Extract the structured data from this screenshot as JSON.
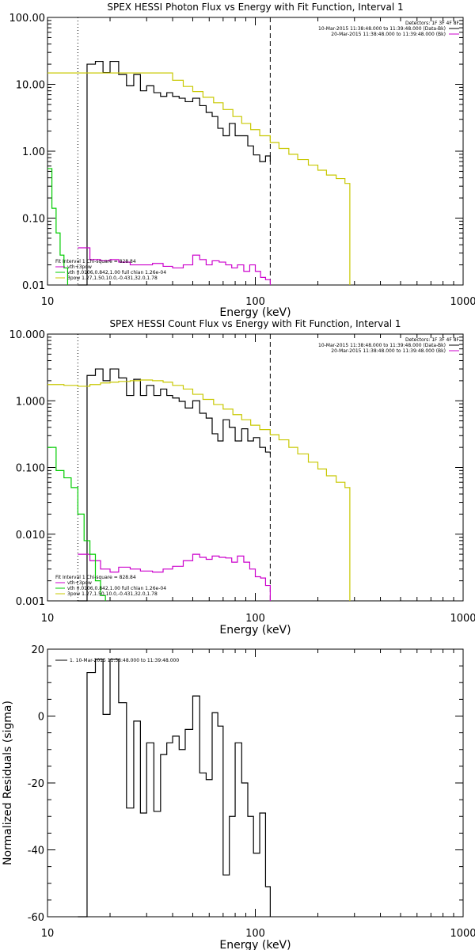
{
  "colors": {
    "data": "#000000",
    "fit": "#c8c800",
    "bk": "#cc00cc",
    "vth": "#00cc00",
    "fit_legend_vth": "#cc00cc"
  },
  "chart_data": [
    {
      "type": "line",
      "title": "SPEX HESSI Photon Flux vs Energy with Fit Function, Interval 1",
      "xlabel": "Energy (keV)",
      "ylabel": "",
      "xscale": "log",
      "yscale": "log",
      "xlim": [
        10,
        1000
      ],
      "ylim": [
        0.01,
        100
      ],
      "xtick_labels": [
        "10",
        "100",
        "1000"
      ],
      "ytick_labels": [
        "100.00",
        "10.00",
        "1.00",
        "0.10",
        "0.01"
      ],
      "detectors_text": "Detectors: 1F 3F 4F 8F",
      "legend_right": [
        {
          "text": "10-Mar-2015 11:38:48.000 to 11:39:48.000 (Data-Bk)",
          "color": "#000000"
        },
        {
          "text": "20-Mar-2015 11:38:48.000 to 11:39:48.000 (Bk)",
          "color": "#cc00cc"
        }
      ],
      "fit_header": "Fit Interval  1   Chi-square = 828.84",
      "fit_lines": [
        {
          "text": "vth+3pow",
          "color": "#cc00cc"
        },
        {
          "text": "vth 0.0106,0.842,1.00  full chian 1.26e-04",
          "color": "#00cc00"
        },
        {
          "text": "3pow 1.27,1.50,10.0,-0.431,32.0,1.78",
          "color": "#c8c800"
        }
      ],
      "vlines": [
        {
          "x": 14.0,
          "style": "dotted"
        },
        {
          "x": 118,
          "style": "dashed"
        }
      ],
      "series": [
        {
          "name": "Data-Bk",
          "color": "#000000",
          "step": true,
          "x": [
            14,
            15.5,
            17,
            18.5,
            20,
            22,
            24,
            26,
            28,
            30,
            32.5,
            35,
            37.5,
            40,
            43,
            46,
            50,
            54,
            58,
            62,
            66,
            70,
            75,
            80,
            86,
            92,
            98,
            105,
            112,
            118
          ],
          "y": [
            0.01,
            20,
            22,
            15,
            22,
            14,
            9.5,
            14,
            8,
            9.5,
            7.5,
            6.6,
            7.5,
            6.6,
            6.2,
            5.5,
            6.2,
            4.8,
            3.8,
            3.3,
            2.2,
            1.7,
            2.6,
            1.7,
            1.7,
            1.2,
            0.88,
            0.7,
            0.85,
            0.7
          ]
        },
        {
          "name": "Fit",
          "color": "#c8c800",
          "step": true,
          "x": [
            10,
            12,
            14,
            16,
            18,
            20,
            22,
            25,
            28,
            32,
            36,
            40,
            45,
            50,
            56,
            63,
            70,
            78,
            86,
            95,
            105,
            118,
            130,
            145,
            160,
            180,
            200,
            220,
            245,
            270,
            285
          ],
          "y": [
            14.8,
            14.8,
            14.8,
            14.8,
            14.8,
            14.8,
            14.8,
            14.8,
            14.8,
            14.8,
            14.8,
            11.5,
            9.3,
            7.8,
            6.4,
            5.3,
            4.2,
            3.3,
            2.6,
            2.1,
            1.7,
            1.35,
            1.1,
            0.9,
            0.75,
            0.62,
            0.52,
            0.44,
            0.39,
            0.33,
            0.01
          ]
        },
        {
          "name": "Bk",
          "color": "#cc00cc",
          "step": true,
          "x": [
            14,
            16,
            18,
            20,
            22,
            25,
            28,
            32,
            36,
            40,
            45,
            50,
            54,
            58,
            62,
            67,
            72,
            77,
            82,
            88,
            94,
            100,
            106,
            112,
            118
          ],
          "y": [
            0.036,
            0.024,
            0.023,
            0.024,
            0.022,
            0.02,
            0.02,
            0.021,
            0.019,
            0.018,
            0.02,
            0.028,
            0.024,
            0.02,
            0.023,
            0.022,
            0.02,
            0.018,
            0.02,
            0.016,
            0.02,
            0.016,
            0.013,
            0.012,
            0.01
          ]
        },
        {
          "name": "vth",
          "color": "#00cc00",
          "step": true,
          "x": [
            10,
            10.5,
            11,
            11.5,
            12,
            12.5
          ],
          "y": [
            0.55,
            0.14,
            0.06,
            0.028,
            0.018,
            0.01
          ]
        }
      ]
    },
    {
      "type": "line",
      "title": "SPEX HESSI Count Flux vs Energy with Fit Function, Interval 1",
      "xlabel": "Energy (keV)",
      "ylabel": "",
      "xscale": "log",
      "yscale": "log",
      "xlim": [
        10,
        1000
      ],
      "ylim": [
        0.001,
        10
      ],
      "xtick_labels": [
        "10",
        "100",
        "1000"
      ],
      "ytick_labels": [
        "10.000",
        "1.000",
        "0.100",
        "0.010",
        "0.001"
      ],
      "detectors_text": "Detectors: 1F 3F 4F 8F",
      "legend_right": [
        {
          "text": "10-Mar-2015 11:38:48.000 to 11:39:48.000 (Data-Bk)",
          "color": "#000000"
        },
        {
          "text": "20-Mar-2015 11:38:48.000 to 11:39:48.000 (Bk)",
          "color": "#cc00cc"
        }
      ],
      "fit_header": "Fit Interval  1   Chi-square = 828.84",
      "fit_lines": [
        {
          "text": "vth+3pow",
          "color": "#cc00cc"
        },
        {
          "text": "vth 0.0106,0.842,1.00  full chian 1.26e-04",
          "color": "#00cc00"
        },
        {
          "text": "3pow 1.27,1.50,10.0,-0.431,32.0,1.78",
          "color": "#c8c800"
        }
      ],
      "vlines": [
        {
          "x": 14.0,
          "style": "dotted"
        },
        {
          "x": 118,
          "style": "dashed"
        }
      ],
      "series": [
        {
          "name": "Data-Bk",
          "color": "#000000",
          "step": true,
          "x": [
            14,
            15.5,
            17,
            18.5,
            20,
            22,
            24,
            26,
            28,
            30,
            32.5,
            35,
            37.5,
            40,
            43,
            46,
            50,
            54,
            58,
            62,
            66,
            70,
            75,
            80,
            86,
            92,
            98,
            105,
            112,
            118
          ],
          "y": [
            0.001,
            2.4,
            3.0,
            2.0,
            3.0,
            2.2,
            1.2,
            2.1,
            1.2,
            1.7,
            1.2,
            1.5,
            1.2,
            1.1,
            0.98,
            0.78,
            1.0,
            0.65,
            0.55,
            0.32,
            0.25,
            0.52,
            0.4,
            0.25,
            0.38,
            0.25,
            0.28,
            0.2,
            0.17,
            0.16
          ]
        },
        {
          "name": "Fit",
          "color": "#c8c800",
          "step": true,
          "x": [
            10,
            12,
            14,
            16,
            18,
            20,
            22,
            25,
            28,
            32,
            36,
            40,
            45,
            50,
            56,
            63,
            70,
            78,
            86,
            95,
            105,
            118,
            130,
            145,
            160,
            180,
            200,
            220,
            245,
            270,
            285
          ],
          "y": [
            1.75,
            1.7,
            1.65,
            1.75,
            1.85,
            1.9,
            1.95,
            2.0,
            2.05,
            2.0,
            1.9,
            1.7,
            1.5,
            1.25,
            1.05,
            0.88,
            0.75,
            0.62,
            0.52,
            0.43,
            0.37,
            0.31,
            0.26,
            0.2,
            0.16,
            0.12,
            0.095,
            0.075,
            0.06,
            0.05,
            0.001
          ]
        },
        {
          "name": "Bk",
          "color": "#cc00cc",
          "step": true,
          "x": [
            14,
            16,
            18,
            20,
            22,
            25,
            28,
            32,
            36,
            40,
            45,
            50,
            54,
            58,
            62,
            67,
            72,
            77,
            82,
            88,
            94,
            100,
            106,
            112,
            118
          ],
          "y": [
            0.005,
            0.004,
            0.003,
            0.0027,
            0.0032,
            0.003,
            0.0028,
            0.0027,
            0.003,
            0.0033,
            0.004,
            0.005,
            0.0045,
            0.0042,
            0.0047,
            0.0045,
            0.0044,
            0.0038,
            0.0047,
            0.0038,
            0.003,
            0.0023,
            0.0022,
            0.0017,
            0.001
          ]
        },
        {
          "name": "vth",
          "color": "#00cc00",
          "step": true,
          "x": [
            10,
            11,
            12,
            13,
            14,
            15,
            16,
            17,
            18,
            19
          ],
          "y": [
            0.2,
            0.09,
            0.07,
            0.05,
            0.02,
            0.008,
            0.005,
            0.002,
            0.0012,
            0.001
          ]
        }
      ]
    },
    {
      "type": "line",
      "title": "",
      "xlabel": "Energy (keV)",
      "ylabel": "Normalized Residuals (sigma)",
      "xscale": "log",
      "yscale": "linear",
      "xlim": [
        10,
        1000
      ],
      "ylim": [
        -60,
        20
      ],
      "xtick_labels": [
        "10",
        "100",
        "1000"
      ],
      "yticks": [
        20,
        0,
        -20,
        -40,
        -60
      ],
      "ytick_labels": [
        "20",
        "0",
        "-20",
        "-40",
        "-60"
      ],
      "legend_left": [
        {
          "text": "1. 10-Mar-2015 11:38:48.000 to 11:39:48.000",
          "color": "#000000"
        }
      ],
      "series": [
        {
          "name": "Residuals",
          "color": "#000000",
          "step": true,
          "x": [
            14,
            15.5,
            17,
            18.5,
            20,
            22,
            24,
            26,
            28,
            30,
            32.5,
            35,
            37.5,
            40,
            43,
            46,
            50,
            54,
            58,
            62,
            66,
            70,
            75,
            80,
            86,
            92,
            98,
            105,
            112,
            118
          ],
          "y": [
            -65,
            13,
            17,
            0.5,
            17,
            4,
            -27.5,
            -1.5,
            -29,
            -8,
            -28.5,
            -11.5,
            -8,
            -6,
            -10,
            -4,
            6,
            -17,
            -19,
            1,
            -3,
            -47.5,
            -30,
            -8,
            -20,
            -30,
            -41,
            -29,
            -51,
            -65
          ]
        }
      ]
    }
  ]
}
